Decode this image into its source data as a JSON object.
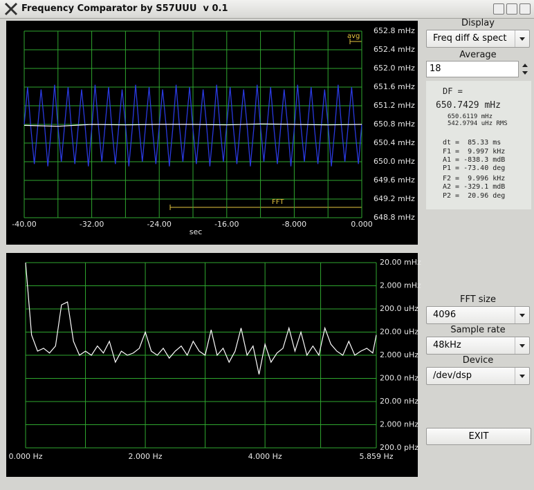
{
  "window": {
    "title": "Frequency Comparator by S57UUU  v 0.1"
  },
  "panel": {
    "display_label": "Display",
    "display_value": "Freq diff & spect",
    "average_label": "Average",
    "average_value": "18",
    "readout": [
      "DF =",
      "650.7429 mHz",
      "650.6119 mHz",
      "542.9794 uHz RMS",
      "dt =  85.33 ms",
      "F1 =  9.997 kHz",
      "A1 = -838.3 mdB",
      "P1 = -73.40 deg",
      "F2 =  9.996 kHz",
      "A2 = -329.1 mdB",
      "P2 =  20.96 deg"
    ],
    "fft_label": "FFT size",
    "fft_value": "4096",
    "rate_label": "Sample rate",
    "rate_value": "48kHz",
    "device_label": "Device",
    "device_value": "/dev/dsp",
    "exit": "EXIT"
  },
  "chart_data": [
    {
      "type": "line",
      "x_label": "sec",
      "annotations": [
        "avg",
        "FFT"
      ],
      "grid": true,
      "log_y": false,
      "xlim": [
        -40,
        0
      ],
      "xticks": [
        {
          "value": -40,
          "label": "-40.00"
        },
        {
          "value": -32,
          "label": "-32.00"
        },
        {
          "value": -24,
          "label": "-24.00"
        },
        {
          "value": -16,
          "label": "-16.00"
        },
        {
          "value": -8,
          "label": "-8.000"
        },
        {
          "value": 0,
          "label": "0.000"
        }
      ],
      "ylim": [
        648.8,
        652.8
      ],
      "yticks": [
        {
          "value": 648.8,
          "label": "648.8 mHz"
        },
        {
          "value": 649.2,
          "label": "649.2 mHz"
        },
        {
          "value": 649.6,
          "label": "649.6 mHz"
        },
        {
          "value": 650.0,
          "label": "650.0 mHz"
        },
        {
          "value": 650.4,
          "label": "650.4 mHz"
        },
        {
          "value": 650.8,
          "label": "650.8 mHz"
        },
        {
          "value": 651.2,
          "label": "651.2 mHz"
        },
        {
          "value": 651.6,
          "label": "651.6 mHz"
        },
        {
          "value": 652.0,
          "label": "652.0 mHz"
        },
        {
          "value": 652.4,
          "label": "652.4 mHz"
        },
        {
          "value": 652.8,
          "label": "652.8 mHz"
        }
      ],
      "x": [
        -40,
        -39.6,
        -39.2,
        -38.8,
        -38.4,
        -38,
        -37.6,
        -37.2,
        -36.8,
        -36.4,
        -36,
        -35.6,
        -35.2,
        -34.8,
        -34.4,
        -34,
        -33.6,
        -33.2,
        -32.8,
        -32.4,
        -32,
        -31.6,
        -31.2,
        -30.8,
        -30.4,
        -30,
        -29.6,
        -29.2,
        -28.8,
        -28.4,
        -28,
        -27.6,
        -27.2,
        -26.8,
        -26.4,
        -26,
        -25.6,
        -25.2,
        -24.8,
        -24.4,
        -24,
        -23.6,
        -23.2,
        -22.8,
        -22.4,
        -22,
        -21.6,
        -21.2,
        -20.8,
        -20.4,
        -20,
        -19.6,
        -19.2,
        -18.8,
        -18.4,
        -18,
        -17.6,
        -17.2,
        -16.8,
        -16.4,
        -16,
        -15.6,
        -15.2,
        -14.8,
        -14.4,
        -14,
        -13.6,
        -13.2,
        -12.8,
        -12.4,
        -12,
        -11.6,
        -11.2,
        -10.8,
        -10.4,
        -10,
        -9.6,
        -9.2,
        -8.8,
        -8.4,
        -8,
        -7.6,
        -7.2,
        -6.8,
        -6.4,
        -6,
        -5.6,
        -5.2,
        -4.8,
        -4.4,
        -4,
        -3.6,
        -3.2,
        -2.8,
        -2.4,
        -2,
        -1.6,
        -1.2,
        -0.8,
        -0.4,
        0
      ],
      "series": [
        {
          "color": "#2a3ae0",
          "values": [
            650.8,
            651.6,
            650.7,
            649.95,
            650.75,
            651.55,
            650.8,
            649.9,
            650.7,
            651.65,
            650.75,
            650.0,
            650.8,
            651.6,
            650.7,
            649.95,
            650.75,
            651.55,
            650.8,
            649.9,
            650.7,
            651.65,
            650.75,
            650.0,
            650.8,
            651.6,
            650.7,
            649.95,
            650.75,
            651.55,
            650.8,
            649.9,
            650.7,
            651.65,
            650.75,
            650.0,
            650.8,
            651.6,
            650.7,
            649.95,
            650.75,
            651.55,
            650.8,
            649.9,
            650.7,
            651.65,
            650.75,
            650.0,
            650.8,
            651.6,
            650.7,
            649.95,
            650.75,
            651.55,
            650.8,
            649.9,
            650.7,
            651.65,
            650.75,
            650.0,
            650.8,
            651.6,
            650.7,
            649.95,
            650.75,
            651.55,
            650.8,
            649.9,
            650.7,
            651.65,
            650.75,
            650.0,
            650.8,
            651.6,
            650.7,
            649.95,
            650.75,
            651.55,
            650.8,
            649.9,
            650.7,
            651.65,
            650.75,
            650.0,
            650.8,
            651.6,
            650.7,
            649.95,
            650.75,
            651.55,
            650.8,
            649.9,
            650.7,
            651.65,
            650.75,
            650.0,
            650.8,
            651.6,
            650.7,
            649.95,
            650.8
          ]
        },
        {
          "color": "#ffffff",
          "x": [
            -40,
            -36,
            -32,
            -28,
            -24,
            -20,
            -16,
            -12,
            -8,
            -4,
            0
          ],
          "values": [
            650.78,
            650.76,
            650.8,
            650.79,
            650.8,
            650.8,
            650.79,
            650.81,
            650.8,
            650.79,
            650.8
          ]
        }
      ]
    },
    {
      "type": "line",
      "grid": true,
      "log_y": true,
      "xlim": [
        0,
        5.859
      ],
      "xticks": [
        {
          "value": 0,
          "label": "0.000  Hz"
        },
        {
          "value": 2,
          "label": "2.000 Hz"
        },
        {
          "value": 4,
          "label": "4.000 Hz"
        },
        {
          "value": 5.859,
          "label": "5.859 Hz"
        }
      ],
      "ylim": [
        0.0002,
        20000
      ],
      "yticks": [
        {
          "value": 20000,
          "label": "20.00 mHz"
        },
        {
          "value": 2000,
          "label": "2.000 mHz"
        },
        {
          "value": 200,
          "label": "200.0 uHz"
        },
        {
          "value": 20,
          "label": "20.00 uHz"
        },
        {
          "value": 2,
          "label": "2.000 uHz"
        },
        {
          "value": 0.2,
          "label": "200.0 nHz"
        },
        {
          "value": 0.02,
          "label": "20.00 nHz"
        },
        {
          "value": 0.002,
          "label": "2.000 nHz"
        },
        {
          "value": 0.0002,
          "label": "200.0 pHz"
        }
      ],
      "x": [
        0,
        0.1,
        0.2,
        0.3,
        0.4,
        0.5,
        0.6,
        0.7,
        0.8,
        0.9,
        1.0,
        1.1,
        1.2,
        1.3,
        1.4,
        1.5,
        1.6,
        1.7,
        1.8,
        1.9,
        2.0,
        2.1,
        2.2,
        2.3,
        2.4,
        2.5,
        2.6,
        2.7,
        2.8,
        2.9,
        3.0,
        3.1,
        3.2,
        3.3,
        3.4,
        3.5,
        3.6,
        3.7,
        3.8,
        3.9,
        4.0,
        4.1,
        4.2,
        4.3,
        4.4,
        4.5,
        4.6,
        4.7,
        4.8,
        4.9,
        5.0,
        5.1,
        5.2,
        5.3,
        5.4,
        5.5,
        5.6,
        5.7,
        5.8,
        5.859
      ],
      "series": [
        {
          "color": "#ffffff",
          "values": [
            20000,
            15,
            3,
            4,
            2.5,
            5,
            300,
            400,
            8,
            2,
            3,
            2,
            5,
            2.5,
            8,
            1,
            3,
            2,
            2.5,
            4,
            20,
            3,
            2,
            4,
            1.5,
            3,
            5,
            2,
            8,
            3,
            2,
            25,
            2,
            4,
            1,
            3,
            30,
            2,
            5,
            0.3,
            6,
            1,
            2.5,
            4,
            30,
            3,
            20,
            2,
            5,
            2,
            30,
            6,
            3,
            2,
            8,
            2,
            3,
            4,
            2.5,
            15
          ]
        }
      ]
    }
  ]
}
